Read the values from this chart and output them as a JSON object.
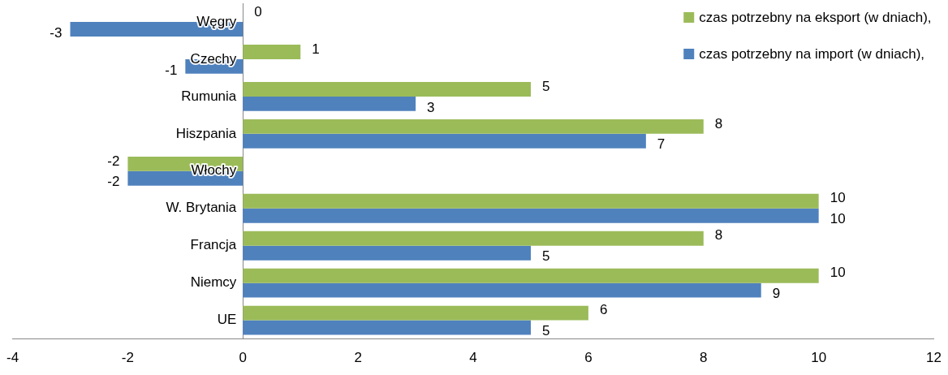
{
  "chart_data": {
    "type": "bar",
    "orientation": "horizontal",
    "categories": [
      "Węgry",
      "Czechy",
      "Rumunia",
      "Hiszpania",
      "Włochy",
      "W. Brytania",
      "Francja",
      "Niemcy",
      "UE"
    ],
    "series": [
      {
        "name": "czas potrzebny na eksport (w dniach),",
        "color": "#9bbb59",
        "values": [
          0,
          1,
          5,
          8,
          -2,
          10,
          8,
          10,
          6
        ]
      },
      {
        "name": "czas potrzebny na import (w dniach),",
        "color": "#4f81bd",
        "values": [
          -3,
          -1,
          3,
          7,
          -2,
          10,
          5,
          9,
          5
        ]
      }
    ],
    "xlim": [
      -4,
      12
    ],
    "xticks": [
      -4,
      -2,
      0,
      2,
      4,
      6,
      8,
      10,
      12
    ],
    "grid": false,
    "legend": "top right",
    "data_labels": true
  }
}
